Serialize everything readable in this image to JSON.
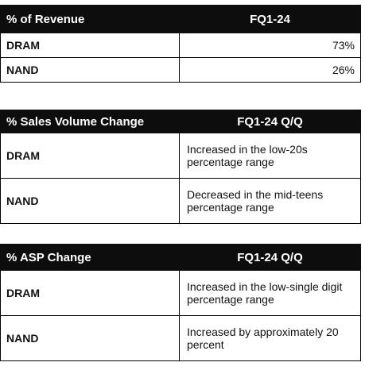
{
  "revenue_table": {
    "header_label": "% of Revenue",
    "header_period": "FQ1-24",
    "rows": [
      {
        "label": "DRAM",
        "value": "73%"
      },
      {
        "label": "NAND",
        "value": "26%"
      }
    ]
  },
  "volume_table": {
    "header_label": "% Sales Volume Change",
    "header_period": "FQ1-24 Q/Q",
    "rows": [
      {
        "label": "DRAM",
        "value": "Increased in the low-20s percentage range"
      },
      {
        "label": "NAND",
        "value": "Decreased in the mid-teens percentage range"
      }
    ]
  },
  "asp_table": {
    "header_label": "% ASP Change",
    "header_period": "FQ1-24 Q/Q",
    "rows": [
      {
        "label": "DRAM",
        "value": "Increased in the low-single digit percentage range"
      },
      {
        "label": "NAND",
        "value": "Increased by approximately 20 percent"
      }
    ]
  }
}
